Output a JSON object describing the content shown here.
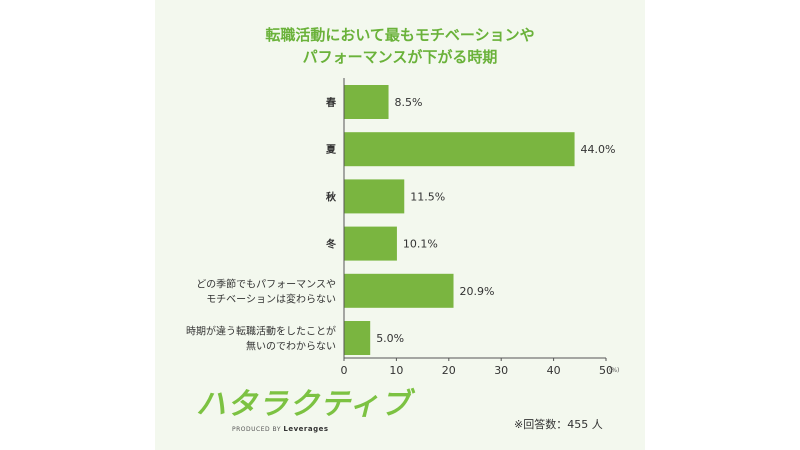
{
  "chart_data": {
    "type": "bar",
    "orientation": "horizontal",
    "title_line1": "転職活動において最もモチベーションや",
    "title_line2": "パフォーマンスが下がる時期",
    "categories": [
      [
        "春"
      ],
      [
        "夏"
      ],
      [
        "秋"
      ],
      [
        "冬"
      ],
      [
        "どの季節でもパフォーマンスや",
        "モチベーションは変わらない"
      ],
      [
        "時期が違う転職活動をしたことが",
        "無いのでわからない"
      ]
    ],
    "values": [
      8.5,
      44.0,
      11.5,
      10.1,
      20.9,
      5.0
    ],
    "value_labels": [
      "8.5%",
      "44.0%",
      "11.5%",
      "10.1%",
      "20.9%",
      "5.0%"
    ],
    "xlim": [
      0,
      50
    ],
    "xticks": [
      0,
      10,
      20,
      30,
      40,
      50
    ],
    "x_unit": "(%)",
    "grid": false,
    "bar_color": "#7ab540"
  },
  "logo": {
    "text": "ハタラクティブ",
    "sub_prefix": "PRODUCED BY",
    "sub_brand": "Leverages"
  },
  "note": "※回答数：455 人"
}
